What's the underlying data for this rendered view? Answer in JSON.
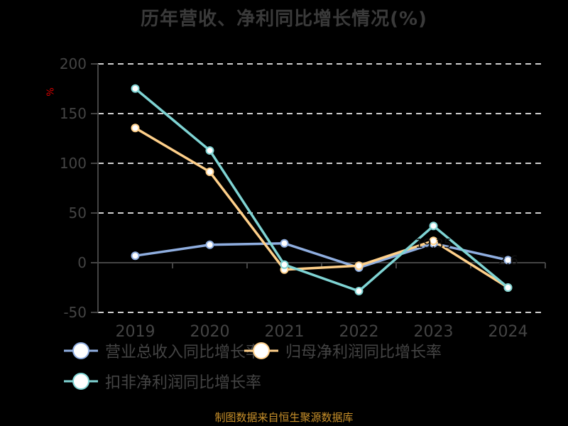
{
  "title": "历年营收、净利同比增长情况(%)",
  "footer": "制图数据来自恒生聚源数据库",
  "colors": {
    "background": "#000000",
    "revenue": "#8faee0",
    "net_profit": "#ffd08a",
    "deducted_profit": "#7fd4d4",
    "unit": "#e00000",
    "footer": "#c8902a"
  },
  "chart_data": {
    "type": "line",
    "title": "历年营收、净利同比增长情况(%)",
    "xlabel": "",
    "ylabel": "%",
    "ylim": [
      -50,
      200
    ],
    "yticks": [
      -50,
      0,
      50,
      100,
      150,
      200
    ],
    "grid": true,
    "legend_position": "bottom",
    "categories": [
      "2019",
      "2020",
      "2021",
      "2022",
      "2023",
      "2024"
    ],
    "series": [
      {
        "name": "营业总收入同比增长率",
        "values": [
          7.0,
          18.0,
          19.5,
          -5.0,
          19.35,
          2.6
        ]
      },
      {
        "name": "归母净利润同比增长率",
        "values": [
          135.5,
          91.4,
          -7.0,
          -3.0,
          22.0,
          -25.0
        ]
      },
      {
        "name": "扣非净利润同比增长率",
        "values": [
          175.2,
          112.9,
          -2.0,
          -28.6,
          37.0,
          -25.0
        ]
      }
    ],
    "annotations": [
      "19.35",
      "2.6"
    ]
  },
  "legend": {
    "items": [
      "营业总收入同比增长率",
      "归母净利润同比增长率",
      "扣非净利润同比增长率"
    ]
  },
  "axis": {
    "unit_label": "%",
    "y_labels": [
      "200",
      "150",
      "100",
      "50",
      "0",
      "-50"
    ],
    "x_labels": [
      "2019",
      "2020",
      "2021",
      "2022",
      "2023",
      "2024"
    ]
  }
}
